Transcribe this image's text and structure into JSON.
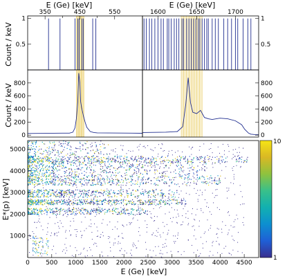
{
  "chart_data": [
    {
      "id": "coincidence-low",
      "type": "bar",
      "xlabel": "E (Ge) [keV]",
      "ylabel": "Count / keV",
      "xlim": [
        300,
        630
      ],
      "ylim": [
        0,
        1.05
      ],
      "xticks": [
        "350",
        "450",
        "550"
      ],
      "xticks_mid": [
        "400",
        "500"
      ],
      "yticks": [
        "1",
        "0.5"
      ],
      "gate": [
        440,
        462
      ],
      "x": [
        360,
        393,
        436,
        444,
        448,
        456,
        460,
        487,
        496
      ],
      "values": [
        1,
        1,
        1,
        1,
        1,
        1,
        1,
        1,
        1
      ]
    },
    {
      "id": "coincidence-high",
      "type": "bar",
      "xlabel": "E (Ge) [keV]",
      "xlim": [
        1580,
        1730
      ],
      "ylim": [
        0,
        1.05
      ],
      "xticks": [
        "1600",
        "1650",
        "1700"
      ],
      "yticks": [
        "1",
        "0.5"
      ],
      "gate": [
        1630,
        1657
      ],
      "x": [
        1582,
        1585,
        1589,
        1592,
        1596,
        1600,
        1604,
        1607,
        1612,
        1614,
        1617,
        1621,
        1624,
        1627,
        1631,
        1633,
        1637,
        1640,
        1643,
        1646,
        1649,
        1652,
        1654,
        1657,
        1660,
        1663,
        1665,
        1670,
        1674,
        1678,
        1685,
        1690,
        1695,
        1700,
        1703,
        1710,
        1716,
        1720
      ],
      "values": [
        1,
        1,
        1,
        1,
        1,
        1,
        1,
        1,
        1,
        1,
        1,
        1,
        1,
        1,
        1,
        1,
        1,
        1,
        1,
        1,
        1,
        1,
        1,
        1,
        1,
        1,
        1,
        1,
        1,
        1,
        1,
        1,
        1,
        1,
        1,
        1,
        1,
        1
      ]
    },
    {
      "id": "projection-low",
      "type": "line",
      "ylabel": "Count / keV",
      "xlim": [
        300,
        630
      ],
      "ylim": [
        -30,
        1000
      ],
      "yticks": [
        "800",
        "600",
        "400",
        "200",
        "0"
      ],
      "gate": [
        440,
        462
      ],
      "x": [
        300,
        400,
        420,
        430,
        436,
        440,
        444,
        447,
        450,
        452,
        455,
        460,
        465,
        470,
        480,
        490,
        500,
        600,
        630
      ],
      "values": [
        25,
        30,
        30,
        45,
        110,
        250,
        500,
        950,
        800,
        520,
        420,
        300,
        200,
        120,
        55,
        40,
        35,
        30,
        28
      ]
    },
    {
      "id": "projection-high",
      "type": "line",
      "xlim": [
        1580,
        1730
      ],
      "ylim": [
        -30,
        1000
      ],
      "yticks": [
        "800",
        "600",
        "400",
        "200",
        "0"
      ],
      "gate": [
        1630,
        1657
      ],
      "x": [
        1580,
        1610,
        1625,
        1632,
        1636,
        1639,
        1642,
        1645,
        1650,
        1655,
        1660,
        1665,
        1670,
        1680,
        1690,
        1700,
        1708,
        1712,
        1717,
        1720,
        1725,
        1730
      ],
      "values": [
        40,
        45,
        55,
        130,
        480,
        880,
        500,
        350,
        330,
        380,
        270,
        250,
        240,
        260,
        250,
        220,
        160,
        90,
        30,
        15,
        8,
        5
      ]
    },
    {
      "id": "matrix",
      "type": "heatmap",
      "xlabel": "E (Ge) [keV]",
      "ylabel": "E*(p) [keV]",
      "xlim": [
        0,
        4800
      ],
      "ylim": [
        0,
        5400
      ],
      "xticks": [
        "0",
        "500",
        "1000",
        "1500",
        "2000",
        "2500",
        "3000",
        "3500",
        "4000",
        "4500"
      ],
      "yticks": [
        "5000",
        "4000",
        "3000",
        "2000",
        "1000"
      ],
      "zlim": [
        1,
        10
      ],
      "zscale": "log",
      "zticks": [
        "10",
        "1"
      ],
      "colormap": [
        "#3a2f8f",
        "#1f5fd6",
        "#0d8fd0",
        "#12b0b0",
        "#39c08a",
        "#8ec23e",
        "#d9b824",
        "#f6e415"
      ],
      "bands": [
        {
          "y": [
            100,
            1000
          ],
          "x": [
            100,
            450
          ],
          "density": 70
        },
        {
          "y": [
            2000,
            2300
          ],
          "x": [
            0,
            2500
          ],
          "density": 55
        },
        {
          "y": [
            2450,
            2700
          ],
          "x": [
            0,
            3300
          ],
          "density": 60
        },
        {
          "y": [
            2800,
            3150
          ],
          "x": [
            0,
            3100
          ],
          "density": 55
        },
        {
          "y": [
            3350,
            3800
          ],
          "x": [
            0,
            4000
          ],
          "density": 50
        },
        {
          "y": [
            3800,
            4500
          ],
          "x": [
            0,
            3700
          ],
          "density": 55
        },
        {
          "y": [
            4400,
            4700
          ],
          "x": [
            0,
            4600
          ],
          "density": 35
        },
        {
          "y": [
            4600,
            5400
          ],
          "x": [
            0,
            1700
          ],
          "density": 40
        }
      ]
    }
  ]
}
